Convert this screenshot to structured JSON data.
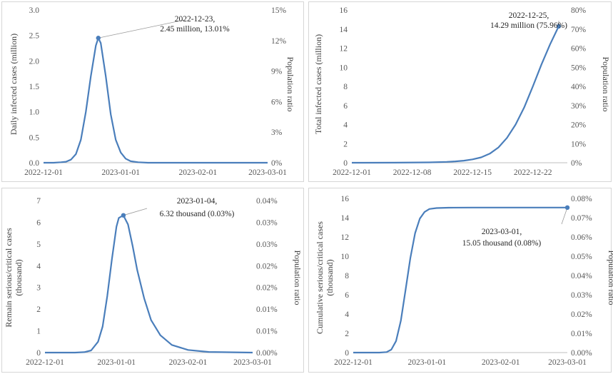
{
  "colors": {
    "series": "#4a7ebb",
    "axis": "#bfbfbf",
    "text": "#595959",
    "border": "#d6d6d6"
  },
  "chart_data": [
    {
      "type": "line",
      "x_type": "date",
      "ylabel": "Daily infected cases (million)",
      "y2label": "Population ratio",
      "ylim": [
        0,
        3.0
      ],
      "yticks": [
        "0.0",
        "0.5",
        "1.0",
        "1.5",
        "2.0",
        "2.5",
        "3.0"
      ],
      "y2ticks": [
        "0%",
        "3%",
        "6%",
        "9%",
        "12%",
        "15%"
      ],
      "xlim": [
        "2022-12-01",
        "2023-03-01"
      ],
      "xticks": [
        "2022-12-01",
        "2023-01-01",
        "2023-02-01",
        "2023-03-01"
      ],
      "grid": false,
      "series": [
        {
          "x": [
            "2022-12-01",
            "2022-12-05",
            "2022-12-08",
            "2022-12-10",
            "2022-12-12",
            "2022-12-14",
            "2022-12-16",
            "2022-12-18",
            "2022-12-20",
            "2022-12-22",
            "2022-12-23",
            "2022-12-24",
            "2022-12-26",
            "2022-12-28",
            "2022-12-30",
            "2023-01-01",
            "2023-01-03",
            "2023-01-05",
            "2023-01-08",
            "2023-01-12",
            "2023-01-20",
            "2023-02-01",
            "2023-03-01"
          ],
          "y": [
            0.0,
            0.0,
            0.01,
            0.02,
            0.06,
            0.17,
            0.45,
            1.0,
            1.7,
            2.3,
            2.45,
            2.35,
            1.7,
            0.95,
            0.45,
            0.2,
            0.08,
            0.03,
            0.01,
            0.0,
            0.0,
            0.0,
            0.0
          ]
        }
      ],
      "annotation": {
        "x": "2022-12-23",
        "y": 2.45,
        "line1": "2022-12-23,",
        "line2": "2.45  million, 13.01%"
      }
    },
    {
      "type": "line",
      "x_type": "date",
      "ylabel": "Total infected cases (million)",
      "y2label": "Population ratio",
      "ylim": [
        0,
        16
      ],
      "yticks": [
        "0",
        "2",
        "4",
        "6",
        "8",
        "10",
        "12",
        "14",
        "16"
      ],
      "y2ticks": [
        "0%",
        "10%",
        "20%",
        "30%",
        "40%",
        "50%",
        "60%",
        "70%",
        "80%"
      ],
      "xlim": [
        "2022-12-01",
        "2022-12-26"
      ],
      "xticks": [
        "2022-12-01",
        "2022-12-08",
        "2022-12-15",
        "2022-12-22"
      ],
      "grid": false,
      "series": [
        {
          "x": [
            "2022-12-01",
            "2022-12-06",
            "2022-12-10",
            "2022-12-12",
            "2022-12-13",
            "2022-12-14",
            "2022-12-15",
            "2022-12-16",
            "2022-12-17",
            "2022-12-18",
            "2022-12-19",
            "2022-12-20",
            "2022-12-21",
            "2022-12-22",
            "2022-12-23",
            "2022-12-24",
            "2022-12-25"
          ],
          "y": [
            0.0,
            0.01,
            0.04,
            0.09,
            0.14,
            0.22,
            0.35,
            0.56,
            0.95,
            1.6,
            2.6,
            4.0,
            5.8,
            8.0,
            10.3,
            12.4,
            14.29
          ]
        }
      ],
      "annotation": {
        "x": "2022-12-25",
        "y": 14.29,
        "line1": "2022-12-25,",
        "line2": "14.29 million (75.96%)"
      }
    },
    {
      "type": "line",
      "x_type": "date",
      "ylabel_lines": [
        "Remain serious/critical cases",
        "(thousand)"
      ],
      "y2label": "Population ratio",
      "ylim": [
        0,
        7
      ],
      "yticks": [
        "0",
        "1",
        "2",
        "3",
        "4",
        "5",
        "6",
        "7"
      ],
      "y2ticks": [
        "0.00%",
        "0.01%",
        "0.01%",
        "0.02%",
        "0.02%",
        "0.03%",
        "0.03%",
        "0.04%"
      ],
      "xlim": [
        "2022-12-01",
        "2023-03-01"
      ],
      "xticks": [
        "2022-12-01",
        "2023-01-01",
        "2023-02-01",
        "2023-03-01"
      ],
      "grid": false,
      "series": [
        {
          "x": [
            "2022-12-01",
            "2022-12-14",
            "2022-12-18",
            "2022-12-21",
            "2022-12-24",
            "2022-12-26",
            "2022-12-28",
            "2022-12-30",
            "2023-01-01",
            "2023-01-02",
            "2023-01-04",
            "2023-01-06",
            "2023-01-08",
            "2023-01-10",
            "2023-01-13",
            "2023-01-16",
            "2023-01-20",
            "2023-01-25",
            "2023-02-01",
            "2023-02-10",
            "2023-03-01"
          ],
          "y": [
            0.0,
            0.0,
            0.02,
            0.1,
            0.5,
            1.2,
            2.6,
            4.3,
            5.8,
            6.2,
            6.32,
            5.9,
            4.9,
            3.8,
            2.5,
            1.5,
            0.8,
            0.35,
            0.12,
            0.03,
            0.0
          ]
        }
      ],
      "annotation": {
        "x": "2023-01-04",
        "y": 6.32,
        "line1": "2023-01-04,",
        "line2": "6.32  thousand (0.03%)"
      }
    },
    {
      "type": "line",
      "x_type": "date",
      "ylabel_lines": [
        "Cumulative serious/critical cases",
        "(thousand)"
      ],
      "y2label": "Population ratio",
      "ylim": [
        0,
        16
      ],
      "yticks": [
        "0",
        "2",
        "4",
        "6",
        "8",
        "10",
        "12",
        "14",
        "16"
      ],
      "y2ticks": [
        "0.00%",
        "0.01%",
        "0.02%",
        "0.03%",
        "0.04%",
        "0.05%",
        "0.06%",
        "0.07%",
        "0.08%"
      ],
      "xlim": [
        "2022-12-01",
        "2023-03-01"
      ],
      "xticks": [
        "2022-12-01",
        "2023-01-01",
        "2023-02-01",
        "2023-03-01"
      ],
      "grid": false,
      "series": [
        {
          "x": [
            "2022-12-01",
            "2022-12-12",
            "2022-12-15",
            "2022-12-17",
            "2022-12-19",
            "2022-12-21",
            "2022-12-23",
            "2022-12-25",
            "2022-12-27",
            "2022-12-29",
            "2022-12-31",
            "2023-01-02",
            "2023-01-05",
            "2023-01-10",
            "2023-01-20",
            "2023-02-01",
            "2023-03-01"
          ],
          "y": [
            0.0,
            0.0,
            0.05,
            0.3,
            1.2,
            3.3,
            6.5,
            9.8,
            12.4,
            13.9,
            14.6,
            14.9,
            15.0,
            15.04,
            15.05,
            15.05,
            15.05
          ]
        }
      ],
      "annotation": {
        "x": "2023-03-01",
        "y": 15.05,
        "line1": "2023-03-01,",
        "line2": "15.05 thousand (0.08%)"
      }
    }
  ]
}
